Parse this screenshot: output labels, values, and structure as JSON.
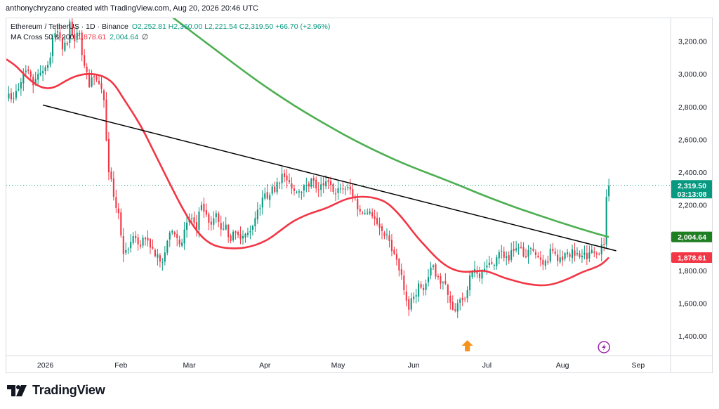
{
  "header": {
    "caption": "anthonychryzano created with TradingView.com, Aug 20, 2026 20:46 UTC"
  },
  "legend": {
    "symbol": "Ethereum / TetherUS · 1D · Binance",
    "ohlc": "O2,252.81  H2,360.00  L2,221.54  C2,319.50  +66.70 (+2.96%)",
    "indicator": "MA Cross 50 & 200",
    "ma50_value": "1,878.61",
    "ma200_value": "2,004.64",
    "extra": "∅"
  },
  "footer": {
    "brand": "TradingView"
  },
  "chart_data": {
    "type": "candlestick",
    "symbol": "Ethereum / TetherUS",
    "interval": "1D",
    "exchange": "Binance",
    "ylim": [
      1280,
      3340
    ],
    "y_ticks": [
      1400,
      1600,
      1800,
      2000,
      2200,
      2400,
      2600,
      2800,
      3000,
      3200
    ],
    "y_tick_labels": [
      "1,400.00",
      "1,600.00",
      "1,800.00",
      "2,000.00",
      "2,200.00",
      "2,400.00",
      "2,600.00",
      "2,800.00",
      "3,000.00",
      "3,200.00"
    ],
    "x_tick_labels": [
      {
        "label": "2026",
        "day": 0
      },
      {
        "label": "Feb",
        "day": 31
      },
      {
        "label": "Mar",
        "day": 59
      },
      {
        "label": "Apr",
        "day": 90
      },
      {
        "label": "May",
        "day": 120
      },
      {
        "label": "Jun",
        "day": 151
      },
      {
        "label": "Jul",
        "day": 181
      },
      {
        "label": "Aug",
        "day": 212
      },
      {
        "label": "Sep",
        "day": 243
      }
    ],
    "x_range_days": [
      -16,
      256
    ],
    "last_day": 231,
    "close_anchors": [
      [
        -15,
        2880
      ],
      [
        -13,
        2850
      ],
      [
        -10,
        2950
      ],
      [
        -8,
        3020
      ],
      [
        -5,
        2930
      ],
      [
        -3,
        3000
      ],
      [
        0,
        3040
      ],
      [
        2,
        3100
      ],
      [
        3,
        3220
      ],
      [
        5,
        3260
      ],
      [
        7,
        3150
      ],
      [
        9,
        3180
      ],
      [
        10,
        3320
      ],
      [
        12,
        3200
      ],
      [
        14,
        3250
      ],
      [
        16,
        3050
      ],
      [
        18,
        2920
      ],
      [
        20,
        2980
      ],
      [
        22,
        2940
      ],
      [
        24,
        2840
      ],
      [
        26,
        2400
      ],
      [
        28,
        2250
      ],
      [
        30,
        2150
      ],
      [
        32,
        1900
      ],
      [
        34,
        1930
      ],
      [
        36,
        2010
      ],
      [
        38,
        1960
      ],
      [
        40,
        2000
      ],
      [
        43,
        1940
      ],
      [
        46,
        1900
      ],
      [
        48,
        1850
      ],
      [
        50,
        1980
      ],
      [
        52,
        2040
      ],
      [
        55,
        1960
      ],
      [
        57,
        2050
      ],
      [
        60,
        2120
      ],
      [
        62,
        2050
      ],
      [
        64,
        2200
      ],
      [
        66,
        2140
      ],
      [
        68,
        2080
      ],
      [
        70,
        2150
      ],
      [
        72,
        2050
      ],
      [
        74,
        2080
      ],
      [
        76,
        1980
      ],
      [
        78,
        2030
      ],
      [
        80,
        1990
      ],
      [
        83,
        2030
      ],
      [
        86,
        2120
      ],
      [
        88,
        2180
      ],
      [
        90,
        2270
      ],
      [
        92,
        2260
      ],
      [
        95,
        2340
      ],
      [
        97,
        2390
      ],
      [
        99,
        2350
      ],
      [
        101,
        2300
      ],
      [
        103,
        2280
      ],
      [
        106,
        2320
      ],
      [
        109,
        2360
      ],
      [
        111,
        2300
      ],
      [
        114,
        2320
      ],
      [
        116,
        2340
      ],
      [
        118,
        2280
      ],
      [
        121,
        2300
      ],
      [
        124,
        2310
      ],
      [
        127,
        2240
      ],
      [
        129,
        2160
      ],
      [
        131,
        2150
      ],
      [
        134,
        2130
      ],
      [
        137,
        2060
      ],
      [
        139,
        2010
      ],
      [
        141,
        1980
      ],
      [
        143,
        1900
      ],
      [
        145,
        1800
      ],
      [
        147,
        1680
      ],
      [
        149,
        1560
      ],
      [
        151,
        1640
      ],
      [
        153,
        1720
      ],
      [
        155,
        1680
      ],
      [
        157,
        1760
      ],
      [
        159,
        1830
      ],
      [
        161,
        1760
      ],
      [
        163,
        1730
      ],
      [
        165,
        1650
      ],
      [
        167,
        1560
      ],
      [
        169,
        1600
      ],
      [
        171,
        1620
      ],
      [
        173,
        1680
      ],
      [
        175,
        1790
      ],
      [
        177,
        1780
      ],
      [
        179,
        1800
      ],
      [
        181,
        1830
      ],
      [
        183,
        1840
      ],
      [
        185,
        1880
      ],
      [
        187,
        1920
      ],
      [
        190,
        1860
      ],
      [
        192,
        1920
      ],
      [
        194,
        1940
      ],
      [
        197,
        1880
      ],
      [
        200,
        1920
      ],
      [
        202,
        1880
      ],
      [
        205,
        1860
      ],
      [
        208,
        1920
      ],
      [
        211,
        1880
      ],
      [
        214,
        1910
      ],
      [
        217,
        1890
      ],
      [
        220,
        1890
      ],
      [
        223,
        1910
      ],
      [
        226,
        1900
      ],
      [
        229,
        1960
      ],
      [
        230,
        2250
      ],
      [
        231,
        2319.5
      ]
    ],
    "ma50": {
      "name": "MA 50",
      "color": "#f23645",
      "current": 1878.61,
      "points": [
        [
          -16,
          3090
        ],
        [
          -12,
          3050
        ],
        [
          -8,
          2985
        ],
        [
          -4,
          2935
        ],
        [
          0,
          2910
        ],
        [
          4,
          2918
        ],
        [
          8,
          2955
        ],
        [
          12,
          2985
        ],
        [
          16,
          3000
        ],
        [
          20,
          3000
        ],
        [
          24,
          2985
        ],
        [
          28,
          2945
        ],
        [
          32,
          2850
        ],
        [
          36,
          2760
        ],
        [
          40,
          2660
        ],
        [
          44,
          2540
        ],
        [
          48,
          2420
        ],
        [
          52,
          2300
        ],
        [
          56,
          2185
        ],
        [
          60,
          2085
        ],
        [
          64,
          2005
        ],
        [
          68,
          1960
        ],
        [
          72,
          1940
        ],
        [
          76,
          1935
        ],
        [
          80,
          1935
        ],
        [
          84,
          1945
        ],
        [
          88,
          1965
        ],
        [
          92,
          1995
        ],
        [
          96,
          2040
        ],
        [
          100,
          2085
        ],
        [
          104,
          2120
        ],
        [
          108,
          2145
        ],
        [
          112,
          2165
        ],
        [
          116,
          2185
        ],
        [
          120,
          2215
        ],
        [
          124,
          2240
        ],
        [
          128,
          2250
        ],
        [
          132,
          2250
        ],
        [
          136,
          2240
        ],
        [
          140,
          2215
        ],
        [
          144,
          2160
        ],
        [
          148,
          2090
        ],
        [
          152,
          2010
        ],
        [
          156,
          1945
        ],
        [
          160,
          1880
        ],
        [
          164,
          1830
        ],
        [
          168,
          1800
        ],
        [
          172,
          1790
        ],
        [
          176,
          1795
        ],
        [
          180,
          1800
        ],
        [
          184,
          1780
        ],
        [
          188,
          1755
        ],
        [
          192,
          1738
        ],
        [
          196,
          1722
        ],
        [
          200,
          1712
        ],
        [
          204,
          1708
        ],
        [
          208,
          1715
        ],
        [
          212,
          1735
        ],
        [
          216,
          1760
        ],
        [
          220,
          1790
        ],
        [
          224,
          1810
        ],
        [
          228,
          1835
        ],
        [
          231,
          1878.61
        ]
      ]
    },
    "ma200": {
      "name": "MA 200",
      "color": "#4caf50",
      "current": 2004.64,
      "points": [
        [
          42,
          3450
        ],
        [
          50,
          3370
        ],
        [
          58,
          3280
        ],
        [
          66,
          3190
        ],
        [
          74,
          3100
        ],
        [
          82,
          3010
        ],
        [
          90,
          2925
        ],
        [
          98,
          2845
        ],
        [
          106,
          2770
        ],
        [
          114,
          2700
        ],
        [
          122,
          2632
        ],
        [
          130,
          2570
        ],
        [
          138,
          2512
        ],
        [
          146,
          2458
        ],
        [
          154,
          2410
        ],
        [
          162,
          2365
        ],
        [
          170,
          2318
        ],
        [
          178,
          2268
        ],
        [
          186,
          2222
        ],
        [
          194,
          2178
        ],
        [
          202,
          2138
        ],
        [
          210,
          2098
        ],
        [
          218,
          2060
        ],
        [
          226,
          2024
        ],
        [
          231,
          2004.64
        ]
      ]
    },
    "trendline": {
      "start": [
        -1,
        2810
      ],
      "end": [
        234,
        1920
      ],
      "color": "#000000"
    },
    "last_price": {
      "value": 2319.5,
      "label": "2,319.50",
      "countdown": "03:13:08",
      "color": "#089981"
    },
    "ma200_label": {
      "value": 2004.64,
      "label": "2,004.64",
      "color": "#1e7e22"
    },
    "ma50_label": {
      "value": 1878.61,
      "label": "1,878.61",
      "color": "#f23645"
    },
    "candle_up_color": "#089981",
    "candle_down_color": "#f23645",
    "grid": false,
    "event_markers": [
      {
        "day": 173,
        "kind": "up-arrow",
        "color": "#f7931a"
      }
    ],
    "bottom_icon": {
      "day": 229,
      "kind": "flash",
      "color": "#9c27b0"
    }
  }
}
